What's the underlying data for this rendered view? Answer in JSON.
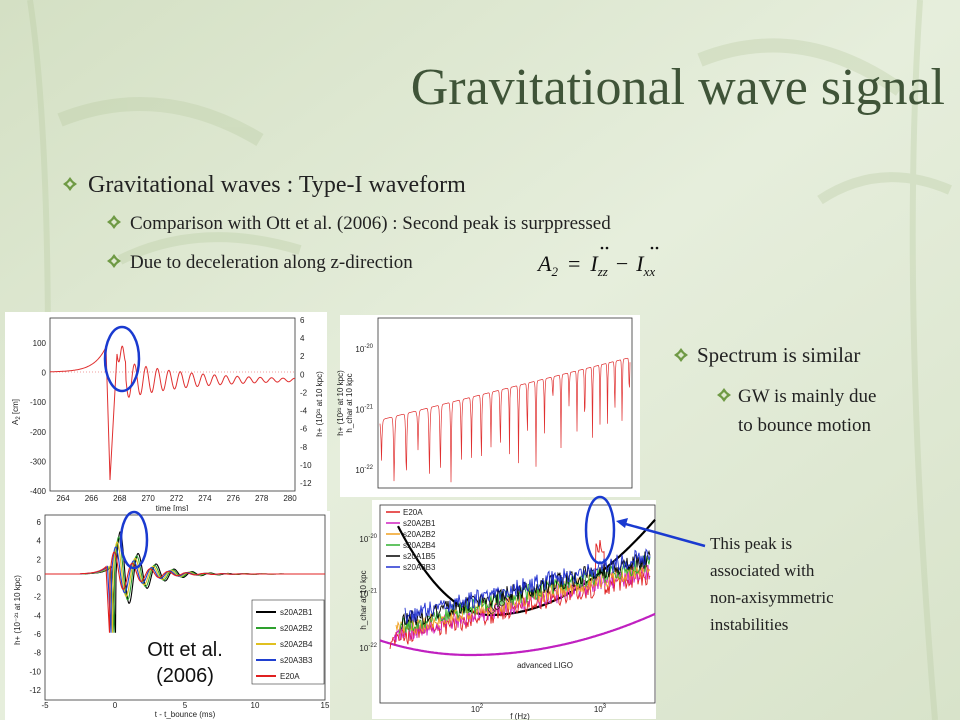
{
  "title": "Gravitational wave signal",
  "bullet": {
    "text": "Gravitational waves : Type-I waveform",
    "sub": [
      "Comparison with Ott et al. (2006) : Second peak is surppressed",
      "Due to deceleration along z-direction"
    ]
  },
  "equation": {
    "lhs": "A",
    "lhs_sub": "2",
    "eq": "=",
    "t1": "I",
    "t1_sub": "zz",
    "minus": "−",
    "t2": "I",
    "t2_sub": "xx"
  },
  "right_bullet": {
    "text": "Spectrum is similar",
    "sub_lines": [
      "GW is mainly due",
      "to bounce motion"
    ]
  },
  "annotation_lines": [
    "This peak is",
    "associated with",
    "non-axisymmetric",
    "instabilities"
  ],
  "plots": {
    "top_left": {
      "ylabel": "A",
      "ylabel_sub": "2",
      "ylabel_unit": " [cm]",
      "yticks": [
        "100",
        "0",
        "-100",
        "-200",
        "-300",
        "-400"
      ],
      "y2ticks": [
        "6",
        "4",
        "2",
        "0",
        "-2",
        "-4",
        "-6",
        "-8",
        "-10",
        "-12"
      ],
      "y2label": "h+ (10²¹ at 10 kpc)",
      "xticks": [
        "264",
        "266",
        "268",
        "270",
        "272",
        "274",
        "276",
        "278",
        "280"
      ],
      "xlabel": "time [ms]"
    },
    "top_right": {
      "ylabel": "h+ (10²¹ at 10 kpc)",
      "ylabel2": "h_char at 10 kpc",
      "yticks": [
        {
          "base": "10",
          "exp": "-20"
        },
        {
          "base": "10",
          "exp": "-21"
        },
        {
          "base": "10",
          "exp": "-22"
        }
      ]
    },
    "bottom_left": {
      "ylabel": "h+ (10⁻²¹ at 10 kpc)",
      "yticks": [
        "6",
        "4",
        "2",
        "0",
        "-2",
        "-4",
        "-6",
        "-8",
        "-10",
        "-12"
      ],
      "xticks": [
        "-5",
        "0",
        "5",
        "10",
        "15"
      ],
      "xlabel": "t - t_bounce (ms)",
      "legend": [
        {
          "name": "s20A2B1",
          "color": "#000000"
        },
        {
          "name": "s20A2B2",
          "color": "#2ea02e"
        },
        {
          "name": "s20A2B4",
          "color": "#e0c020"
        },
        {
          "name": "s20A3B3",
          "color": "#2040d0"
        },
        {
          "name": "E20A",
          "color": "#e02020"
        }
      ],
      "caption_lines": [
        "Ott et al.",
        "(2006)"
      ]
    },
    "bottom_right": {
      "ylabel": "h_char at 10 kpc",
      "yticks": [
        {
          "base": "10",
          "exp": "-20"
        },
        {
          "base": "10",
          "exp": "-21"
        },
        {
          "base": "10",
          "exp": "-22"
        }
      ],
      "xticks": [
        {
          "base": "10",
          "exp": "2"
        },
        {
          "base": "10",
          "exp": "3"
        }
      ],
      "xlabel": "f (Hz)",
      "legend": [
        {
          "name": "E20A",
          "color": "#e02020"
        },
        {
          "name": "s20A2B1",
          "color": "#d020c0"
        },
        {
          "name": "s20A2B2",
          "color": "#f0a020"
        },
        {
          "name": "s20A2B4",
          "color": "#30b030"
        },
        {
          "name": "s20A1B5",
          "color": "#000000"
        },
        {
          "name": "s20A3B3",
          "color": "#2030d0"
        }
      ],
      "curve_labels": [
        "LIGO I",
        "advanced LIGO"
      ]
    }
  }
}
